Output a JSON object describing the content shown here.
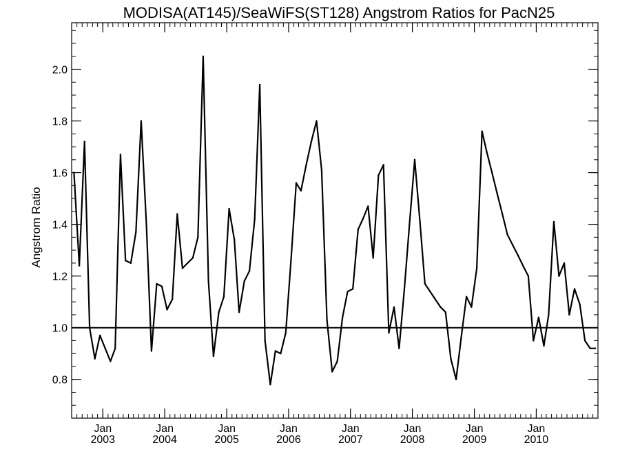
{
  "chart_data": {
    "type": "line",
    "title": "MODISA(AT145)/SeaWiFS(ST128)  Angstrom Ratios for PacN25",
    "ylabel": "Angstrom Ratio",
    "xlabel": "",
    "xlim": [
      "2002-07-01",
      "2010-12-31"
    ],
    "ylim": [
      0.65,
      2.18
    ],
    "yticks": [
      0.8,
      1.0,
      1.2,
      1.4,
      1.6,
      1.8,
      2.0
    ],
    "ytick_labels": [
      "0.8",
      "1.0",
      "1.2",
      "1.4",
      "1.6",
      "1.8",
      "2.0"
    ],
    "xticks": [
      {
        "date": "2003-01-01",
        "month": "Jan",
        "year": "2003"
      },
      {
        "date": "2004-01-01",
        "month": "Jan",
        "year": "2004"
      },
      {
        "date": "2005-01-01",
        "month": "Jan",
        "year": "2005"
      },
      {
        "date": "2006-01-01",
        "month": "Jan",
        "year": "2006"
      },
      {
        "date": "2007-01-01",
        "month": "Jan",
        "year": "2007"
      },
      {
        "date": "2008-01-01",
        "month": "Jan",
        "year": "2008"
      },
      {
        "date": "2009-01-01",
        "month": "Jan",
        "year": "2009"
      },
      {
        "date": "2010-01-01",
        "month": "Jan",
        "year": "2010"
      }
    ],
    "reference_line": 1.0,
    "grid": false,
    "line_color": "#000000",
    "x": [
      "2002-07-15",
      "2002-08-15",
      "2002-09-15",
      "2002-10-15",
      "2002-11-15",
      "2002-12-15",
      "2003-01-15",
      "2003-02-15",
      "2003-03-15",
      "2003-04-15",
      "2003-05-15",
      "2003-06-15",
      "2003-07-15",
      "2003-08-15",
      "2003-09-15",
      "2003-10-15",
      "2003-11-15",
      "2003-12-15",
      "2004-01-15",
      "2004-02-15",
      "2004-03-15",
      "2004-04-15",
      "2004-05-15",
      "2004-06-15",
      "2004-07-15",
      "2004-08-15",
      "2004-09-15",
      "2004-10-15",
      "2004-11-15",
      "2004-12-15",
      "2005-01-15",
      "2005-02-15",
      "2005-03-15",
      "2005-04-15",
      "2005-05-15",
      "2005-06-15",
      "2005-07-15",
      "2005-08-15",
      "2005-09-15",
      "2005-10-15",
      "2005-11-15",
      "2005-12-15",
      "2006-01-15",
      "2006-02-15",
      "2006-03-15",
      "2006-04-15",
      "2006-05-15",
      "2006-06-15",
      "2006-07-15",
      "2006-08-15",
      "2006-09-15",
      "2006-10-15",
      "2006-11-15",
      "2006-12-15",
      "2007-01-15",
      "2007-02-15",
      "2007-03-15",
      "2007-04-15",
      "2007-05-15",
      "2007-06-15",
      "2007-07-15",
      "2007-08-15",
      "2007-09-15",
      "2007-10-15",
      "2007-11-15",
      "2007-12-15",
      "2008-01-15",
      "2008-02-15",
      "2008-03-15",
      "2008-04-15",
      "2008-05-15",
      "2008-06-15",
      "2008-07-15",
      "2008-08-15",
      "2008-09-15",
      "2008-10-15",
      "2008-11-15",
      "2008-12-15",
      "2009-01-15",
      "2009-02-15",
      "2009-03-15",
      "2009-04-15",
      "2009-05-15",
      "2009-06-15",
      "2009-07-15",
      "2009-08-15",
      "2009-09-15",
      "2009-10-15",
      "2009-11-15",
      "2009-12-15",
      "2010-01-15",
      "2010-02-15",
      "2010-03-15",
      "2010-04-15",
      "2010-05-15",
      "2010-06-15",
      "2010-07-15",
      "2010-08-15",
      "2010-09-15",
      "2010-10-15",
      "2010-11-15",
      "2010-12-15"
    ],
    "y": [
      1.6,
      1.24,
      1.72,
      1.0,
      0.88,
      0.97,
      0.92,
      0.87,
      0.92,
      1.67,
      1.26,
      1.25,
      1.37,
      1.8,
      1.4,
      0.91,
      1.17,
      1.16,
      1.07,
      1.11,
      1.44,
      1.23,
      1.25,
      1.27,
      1.35,
      2.05,
      1.18,
      0.89,
      1.06,
      1.12,
      1.46,
      1.34,
      1.06,
      1.18,
      1.22,
      1.42,
      1.94,
      0.95,
      0.78,
      0.91,
      0.9,
      0.98,
      1.26,
      1.56,
      1.53,
      1.63,
      1.72,
      1.8,
      1.61,
      1.03,
      0.83,
      0.87,
      1.04,
      1.14,
      1.15,
      1.38,
      1.42,
      1.47,
      1.27,
      1.59,
      1.63,
      0.98,
      1.08,
      0.92,
      1.15,
      1.4,
      1.65,
      1.41,
      1.17,
      1.14,
      1.11,
      1.08,
      1.06,
      0.88,
      0.8,
      0.96,
      1.12,
      1.08,
      1.23,
      1.76,
      1.68,
      1.6,
      1.52,
      1.44,
      1.36,
      1.32,
      1.28,
      1.24,
      1.2,
      0.95,
      1.04,
      0.93,
      1.05,
      1.41,
      1.2,
      1.25,
      1.05,
      1.15,
      1.09,
      0.95,
      0.92,
      0.92
    ]
  }
}
